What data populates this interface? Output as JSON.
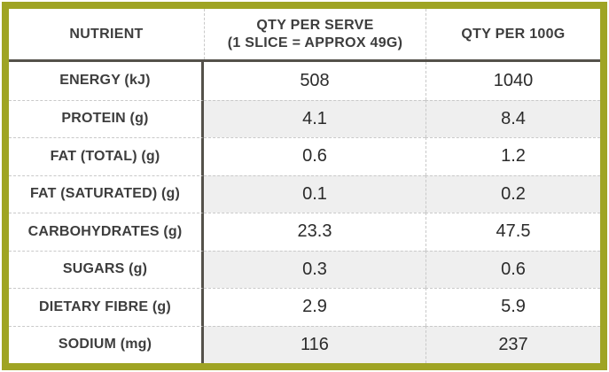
{
  "colors": {
    "frame": "#9fa424",
    "rule": "#54514a",
    "dash": "#c9c9c9",
    "stripe": "#efefef",
    "label_text": "#3d3d3d",
    "value_text": "#2b2b2b"
  },
  "table": {
    "header": {
      "nutrient": "NUTRIENT",
      "per_serve_line1": "QTY PER SERVE",
      "per_serve_line2": "(1 SLICE = APPROX 49G)",
      "per_100g": "QTY PER 100G"
    },
    "rows": [
      {
        "nutrient": "ENERGY (kJ)",
        "per_serve": "508",
        "per_100g": "1040"
      },
      {
        "nutrient": "PROTEIN (g)",
        "per_serve": "4.1",
        "per_100g": "8.4"
      },
      {
        "nutrient": "FAT (TOTAL) (g)",
        "per_serve": "0.6",
        "per_100g": "1.2"
      },
      {
        "nutrient": "FAT (SATURATED) (g)",
        "per_serve": "0.1",
        "per_100g": "0.2"
      },
      {
        "nutrient": "CARBOHYDRATES (g)",
        "per_serve": "23.3",
        "per_100g": "47.5"
      },
      {
        "nutrient": "SUGARS (g)",
        "per_serve": "0.3",
        "per_100g": "0.6"
      },
      {
        "nutrient": "DIETARY FIBRE (g)",
        "per_serve": "2.9",
        "per_100g": "5.9"
      },
      {
        "nutrient": "SODIUM (mg)",
        "per_serve": "116",
        "per_100g": "237"
      }
    ]
  }
}
